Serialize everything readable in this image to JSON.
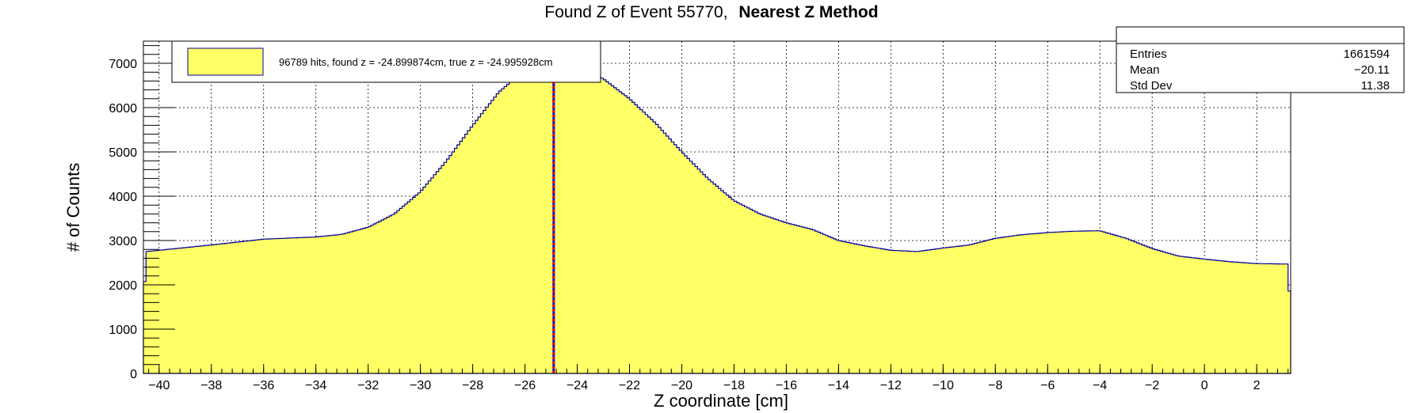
{
  "colors": {
    "fill": "#ffff66",
    "outline": "#000099",
    "found_line": "#0000ff",
    "true_line": "#ff0000",
    "grid": "#000000",
    "background": "#ffffff"
  },
  "chart_data": {
    "type": "area",
    "title_plain": "Found Z of Event 55770,",
    "title_bold": "Nearest Z Method",
    "xlabel": "Z coordinate [cm]",
    "ylabel": "# of Counts",
    "xlim": [
      -40.6,
      3.3
    ],
    "ylim": [
      0,
      7500
    ],
    "grid": true,
    "x_ticks": [
      -40,
      -38,
      -36,
      -34,
      -32,
      -30,
      -28,
      -26,
      -24,
      -22,
      -20,
      -18,
      -16,
      -14,
      -12,
      -10,
      -8,
      -6,
      -4,
      -2,
      0,
      2
    ],
    "y_ticks": [
      0,
      1000,
      2000,
      3000,
      4000,
      5000,
      6000,
      7000
    ],
    "legend": {
      "position": "top-left",
      "label": "96789 hits, found z = -24.899874cm, true z = -24.995928cm"
    },
    "stats": {
      "position": "top-right",
      "rows": [
        {
          "label": "Entries",
          "value": "1661594"
        },
        {
          "label": "Mean",
          "value": "−20.11"
        },
        {
          "label": "Std Dev",
          "value": "11.38"
        }
      ]
    },
    "found_z": -24.899874,
    "true_z": -24.995928,
    "profile": {
      "x": [
        -40.6,
        -40.5,
        -40.0,
        -38.0,
        -36.0,
        -34.0,
        -33.0,
        -32.0,
        -31.0,
        -30.0,
        -29.0,
        -28.0,
        -27.0,
        -26.2,
        -26.0,
        -25.5,
        -25.0,
        -24.6,
        -24.0,
        -23.0,
        -22.0,
        -21.0,
        -20.0,
        -19.0,
        -18.0,
        -17.0,
        -16.0,
        -15.0,
        -14.0,
        -13.0,
        -12.0,
        -11.0,
        -10.0,
        -9.0,
        -8.0,
        -7.0,
        -6.0,
        -5.0,
        -4.0,
        -3.0,
        -2.0,
        -1.0,
        0.0,
        1.0,
        2.0,
        3.0,
        3.2,
        3.3
      ],
      "y": [
        1400,
        2750,
        2780,
        2900,
        3030,
        3080,
        3140,
        3300,
        3600,
        4100,
        4800,
        5600,
        6350,
        6750,
        6900,
        7100,
        7200,
        7150,
        6950,
        6650,
        6200,
        5650,
        5000,
        4400,
        3900,
        3600,
        3400,
        3250,
        3000,
        2880,
        2780,
        2750,
        2830,
        2900,
        3050,
        3130,
        3180,
        3210,
        3220,
        3050,
        2820,
        2650,
        2580,
        2520,
        2480,
        2470,
        2470,
        1250
      ]
    }
  }
}
